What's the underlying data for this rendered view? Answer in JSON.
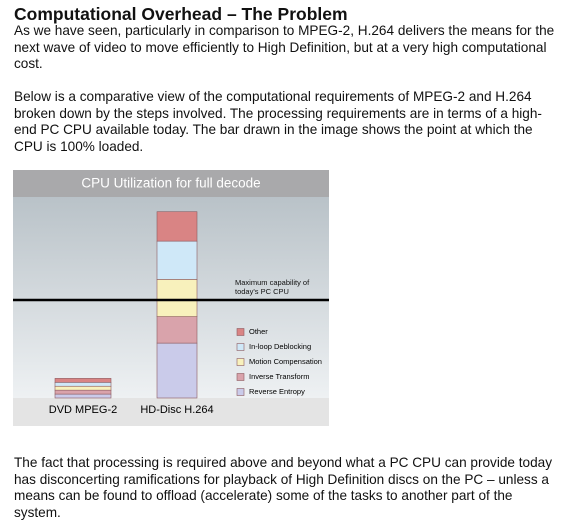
{
  "header": {
    "title": "Computational Overhead – The Problem"
  },
  "paragraphs": [
    "As we have seen, particularly in comparison to MPEG-2, H.264 delivers the means for the next wave of video to move efficiently to High Definition, but at a very high computational cost.",
    "Below is a comparative view of the computational requirements of MPEG-2 and H.264 broken down by the steps involved.  The processing requirements are in terms of a high-end PC CPU available today. The bar drawn in the image shows the point at which the CPU is 100% loaded.",
    "The fact that processing is required above and beyond what a PC CPU can provide today has disconcerting ramifications for playback of High Definition discs on the PC – unless a means can be found to offload (accelerate) some of the tasks to another part of the system."
  ],
  "chart_data": {
    "type": "stacked_bar",
    "title": "CPU Utilization for full decode",
    "categories": [
      "DVD MPEG-2",
      "HD-Disc H.264"
    ],
    "series": [
      {
        "name": "Other",
        "color": "#d98484",
        "values": [
          4,
          30
        ]
      },
      {
        "name": "In-loop Deblocking",
        "color": "#cfe8f8",
        "values": [
          4,
          39
        ]
      },
      {
        "name": "Motion Compensation",
        "color": "#f8f1bc",
        "values": [
          4,
          38
        ]
      },
      {
        "name": "Inverse Transform",
        "color": "#d9a3ab",
        "values": [
          4,
          27
        ]
      },
      {
        "name": "Reverse Entropy",
        "color": "#cacbea",
        "values": [
          4,
          56
        ]
      }
    ],
    "reference": {
      "value": 100,
      "label": "Maximum capability of today's PC CPU"
    },
    "ylim": [
      0,
      205
    ]
  }
}
